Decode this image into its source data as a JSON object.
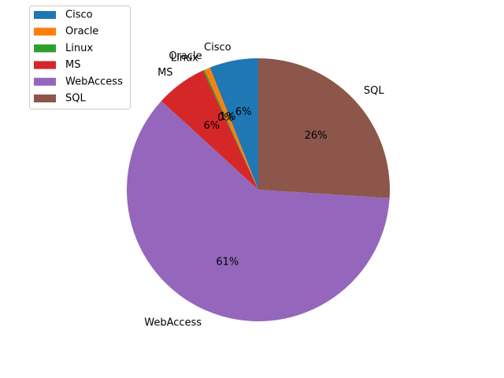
{
  "chart_data": {
    "type": "pie",
    "title": "",
    "start_angle_deg": 90,
    "direction": "counterclockwise",
    "legend_position": "top-left",
    "slices": [
      {
        "label": "Cisco",
        "value": 6,
        "pct_label": "6%",
        "color": "#1f77b4"
      },
      {
        "label": "Oracle",
        "value": 0.7,
        "pct_label": "1%",
        "color": "#ff7f0e"
      },
      {
        "label": "Linux",
        "value": 0.2,
        "pct_label": "0%",
        "color": "#2ca02c"
      },
      {
        "label": "MS",
        "value": 6.3,
        "pct_label": "6%",
        "color": "#d62728"
      },
      {
        "label": "WebAccess",
        "value": 60.8,
        "pct_label": "61%",
        "color": "#9467bd"
      },
      {
        "label": "SQL",
        "value": 26,
        "pct_label": "26%",
        "color": "#8c564b"
      }
    ]
  }
}
